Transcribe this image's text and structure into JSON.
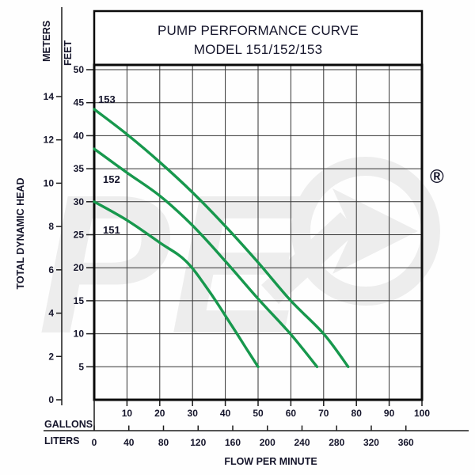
{
  "title": {
    "line1": "PUMP PERFORMANCE CURVE",
    "line2": "MODEL 151/152/153"
  },
  "axes": {
    "left": {
      "meters_label": "METERS",
      "feet_label": "FEET",
      "axis_title": "TOTAL DYNAMIC HEAD",
      "meters_ticks": [
        0,
        2,
        4,
        6,
        8,
        10,
        12,
        14
      ],
      "feet_ticks": [
        5,
        10,
        15,
        20,
        25,
        30,
        35,
        40,
        45,
        50
      ]
    },
    "bottom": {
      "gallons_label": "GALLONS",
      "liters_label": "LITERS",
      "axis_title": "FLOW PER MINUTE",
      "gallons_ticks": [
        10,
        20,
        30,
        40,
        50,
        60,
        70,
        80,
        90,
        100
      ],
      "liters_ticks": [
        0,
        40,
        80,
        120,
        160,
        200,
        240,
        280,
        320,
        360
      ]
    }
  },
  "watermark": {
    "registered_mark": "®"
  },
  "colors": {
    "curve_green": "#17984d",
    "grid": "#333333",
    "frame": "#0a0a0a",
    "text": "#15152b",
    "watermark": "#ededed"
  },
  "chart_data": {
    "type": "line",
    "title": "PUMP PERFORMANCE CURVE MODEL 151/152/153",
    "xlabel": "FLOW PER MINUTE",
    "ylabel": "TOTAL DYNAMIC HEAD",
    "x_units": [
      "GALLONS",
      "LITERS"
    ],
    "y_units": [
      "METERS",
      "FEET"
    ],
    "x_range_gallons": [
      0,
      100
    ],
    "x_range_liters": [
      0,
      378
    ],
    "y_range_feet": [
      0,
      50.7
    ],
    "y_range_meters": [
      0,
      15.4
    ],
    "grid": true,
    "legend_position": "labels-on-curves",
    "series": [
      {
        "name": "153",
        "points_gpm_feet": [
          [
            0,
            44
          ],
          [
            10,
            40.2
          ],
          [
            20,
            36
          ],
          [
            30,
            31.4
          ],
          [
            40,
            26.3
          ],
          [
            50,
            20.8
          ],
          [
            60,
            15
          ],
          [
            70,
            10
          ],
          [
            77.5,
            5
          ]
        ]
      },
      {
        "name": "152",
        "points_gpm_feet": [
          [
            0,
            38
          ],
          [
            10,
            34.4
          ],
          [
            20,
            30.9
          ],
          [
            30,
            26.4
          ],
          [
            40,
            21
          ],
          [
            50,
            15.3
          ],
          [
            60,
            9.9
          ],
          [
            68,
            5
          ]
        ]
      },
      {
        "name": "151",
        "points_gpm_feet": [
          [
            0,
            30
          ],
          [
            10,
            27.2
          ],
          [
            20,
            23.8
          ],
          [
            28,
            21
          ],
          [
            35,
            16.5
          ],
          [
            42,
            11.2
          ],
          [
            47,
            7.3
          ],
          [
            50,
            5
          ]
        ]
      }
    ]
  }
}
